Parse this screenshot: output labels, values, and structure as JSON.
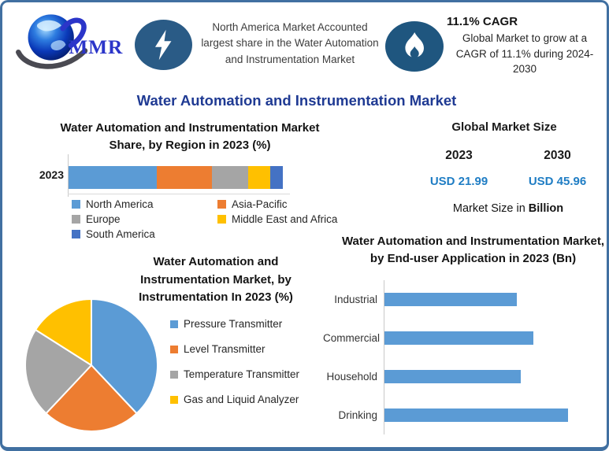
{
  "logo": {
    "text": "MMR"
  },
  "header": {
    "headline": "North America Market Accounted largest share in the Water Automation and Instrumentation Market",
    "cagr_title": "11.1% CAGR",
    "cagr_body": "Global Market to grow at a CAGR of 11.1% during 2024-2030"
  },
  "main_title": "Water Automation and Instrumentation Market",
  "market_size": {
    "title": "Global Market Size",
    "year_left": "2023",
    "year_right": "2030",
    "value_left": "USD 21.99",
    "value_right": "USD 45.96",
    "note_prefix": "Market Size in ",
    "note_bold": "Billion"
  },
  "icons": {
    "left_badge": "lightning-bolt",
    "right_badge": "flame",
    "logo_mark": "globe-with-swoosh"
  },
  "colors": {
    "border": "#4170A1",
    "main_title_navy": "#1F3A93",
    "usd_blue": "#1F7DC4",
    "badge_blue_left": "#2A5B86",
    "badge_blue_right": "#1F567F",
    "logo_blue": "#2B35C9",
    "chart_blue": "#5B9BD5",
    "chart_orange": "#ED7D31",
    "chart_gray": "#A5A5A5",
    "chart_yellow": "#FFC000",
    "chart_dark_blue": "#4472C4"
  },
  "chart_data": [
    {
      "id": "region_share",
      "type": "bar",
      "variant": "stacked-horizontal",
      "title": "Water Automation and Instrumentation Market Share, by Region in 2023 (%)",
      "categories": [
        "2023"
      ],
      "series": [
        {
          "name": "North America",
          "values": [
            41
          ],
          "color": "#5B9BD5"
        },
        {
          "name": "Asia-Pacific",
          "values": [
            26
          ],
          "color": "#ED7D31"
        },
        {
          "name": "Europe",
          "values": [
            17
          ],
          "color": "#A5A5A5"
        },
        {
          "name": "Middle East and Africa",
          "values": [
            10
          ],
          "color": "#FFC000"
        },
        {
          "name": "South America",
          "values": [
            6
          ],
          "color": "#4472C4"
        }
      ],
      "xlim": [
        0,
        100
      ],
      "legend_position": "bottom",
      "note": "segment shares estimated from bar segment widths; no data labels shown"
    },
    {
      "id": "instrumentation_split",
      "type": "pie",
      "title": "Water Automation and Instrumentation Market, by Instrumentation In 2023 (%)",
      "labels": [
        "Pressure Transmitter",
        "Level Transmitter",
        "Temperature Transmitter",
        "Gas and Liquid Analyzer"
      ],
      "values": [
        38,
        24,
        22,
        16
      ],
      "colors": [
        "#5B9BD5",
        "#ED7D31",
        "#A5A5A5",
        "#FFC000"
      ],
      "start_angle_deg": 0,
      "direction": "clockwise",
      "legend_position": "right",
      "note": "slice percentages estimated from arc angles; no data labels shown"
    },
    {
      "id": "end_user_application",
      "type": "bar",
      "variant": "horizontal",
      "title": "Water Automation and Instrumentation Market, by End-user Application in 2023 (Bn)",
      "categories": [
        "Industrial",
        "Commercial",
        "Household",
        "Drinking"
      ],
      "values": [
        0.72,
        0.81,
        0.74,
        1.0
      ],
      "xlim": [
        0,
        1.2
      ],
      "bar_color": "#5B9BD5",
      "note": "axis unlabeled; values are relative bar lengths with Drinking = 1.0"
    }
  ]
}
